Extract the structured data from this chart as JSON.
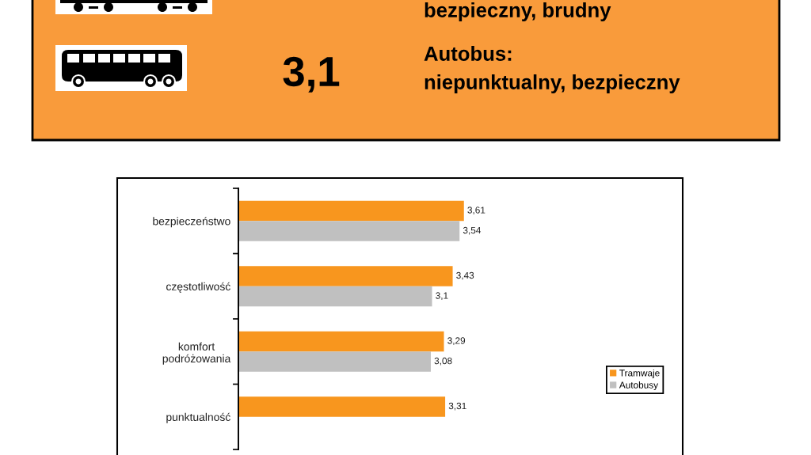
{
  "chart_data": [
    {
      "type": "other",
      "annotations": [
        "bezpieczny, brudny",
        "3,1",
        "Autobus:",
        "niepunktualny, bezpieczny"
      ]
    },
    {
      "type": "bar",
      "orientation": "horizontal",
      "categories": [
        "bezpieczeństwo",
        "częstotliwość",
        "komfort\npodróżowania",
        "punktualność"
      ],
      "series": [
        {
          "name": "Tramwaje",
          "color": "#f8961e",
          "values": [
            3.61,
            3.43,
            3.29,
            3.31
          ],
          "value_labels": [
            "3,61",
            "3,43",
            "3,29",
            "3,31"
          ]
        },
        {
          "name": "Autobusy",
          "color": "#c0c0c0",
          "values": [
            3.54,
            3.1,
            3.08,
            null
          ],
          "value_labels": [
            "3,54",
            "3,1",
            "3,08",
            null
          ]
        }
      ],
      "tick_labels": "y",
      "legend": "right"
    }
  ]
}
